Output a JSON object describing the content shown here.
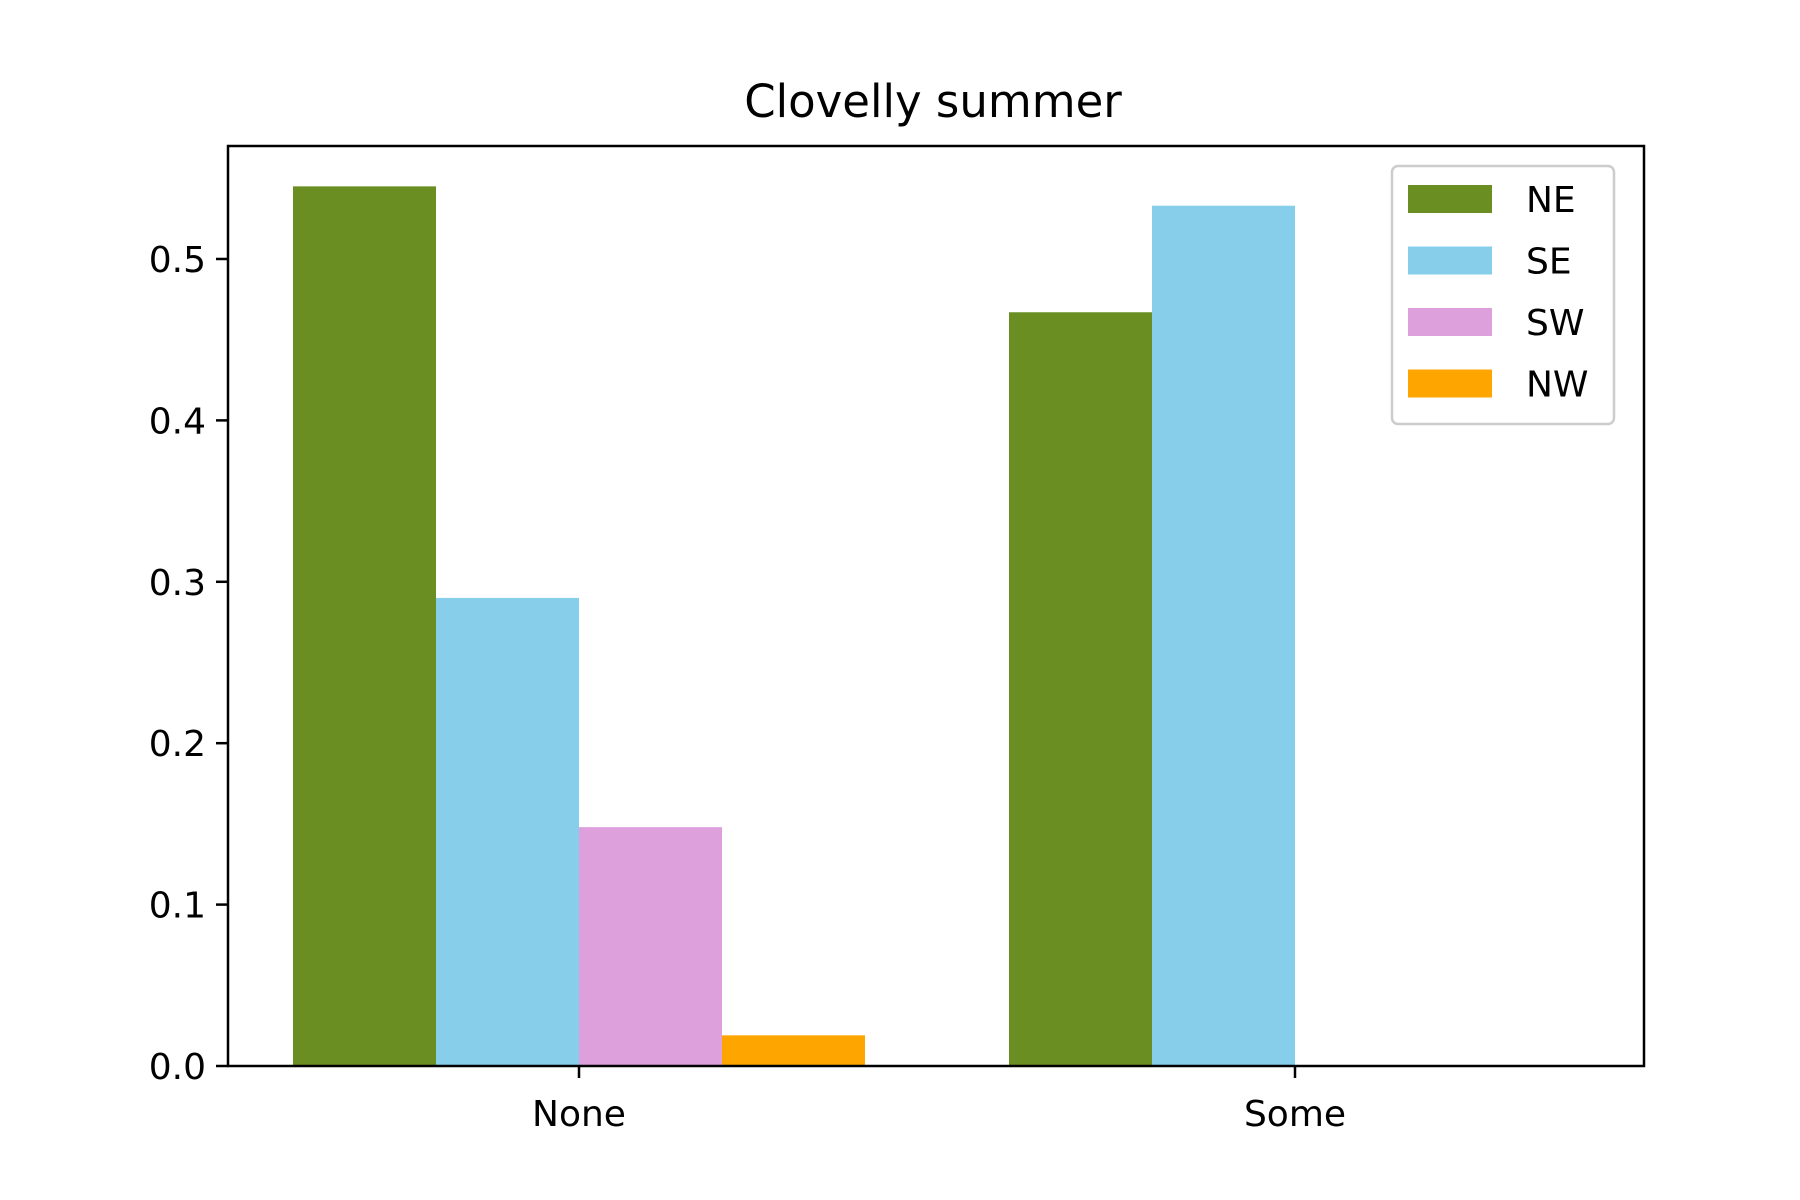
{
  "chart_data": {
    "type": "bar",
    "title": "Clovelly summer",
    "xlabel": "",
    "ylabel": "",
    "categories": [
      "None",
      "Some"
    ],
    "series": [
      {
        "name": "NE",
        "color": "#6B8E23",
        "values": [
          0.545,
          0.467
        ]
      },
      {
        "name": "SE",
        "color": "#87CEEB",
        "values": [
          0.29,
          0.533
        ]
      },
      {
        "name": "SW",
        "color": "#DDA0DD",
        "values": [
          0.148,
          0
        ]
      },
      {
        "name": "NW",
        "color": "#FFA500",
        "values": [
          0.019,
          0
        ]
      }
    ],
    "ylim": [
      0,
      0.57
    ],
    "yticks": [
      "0.0",
      "0.1",
      "0.2",
      "0.3",
      "0.4",
      "0.5"
    ],
    "grid": false,
    "legend_position": "top-right"
  }
}
